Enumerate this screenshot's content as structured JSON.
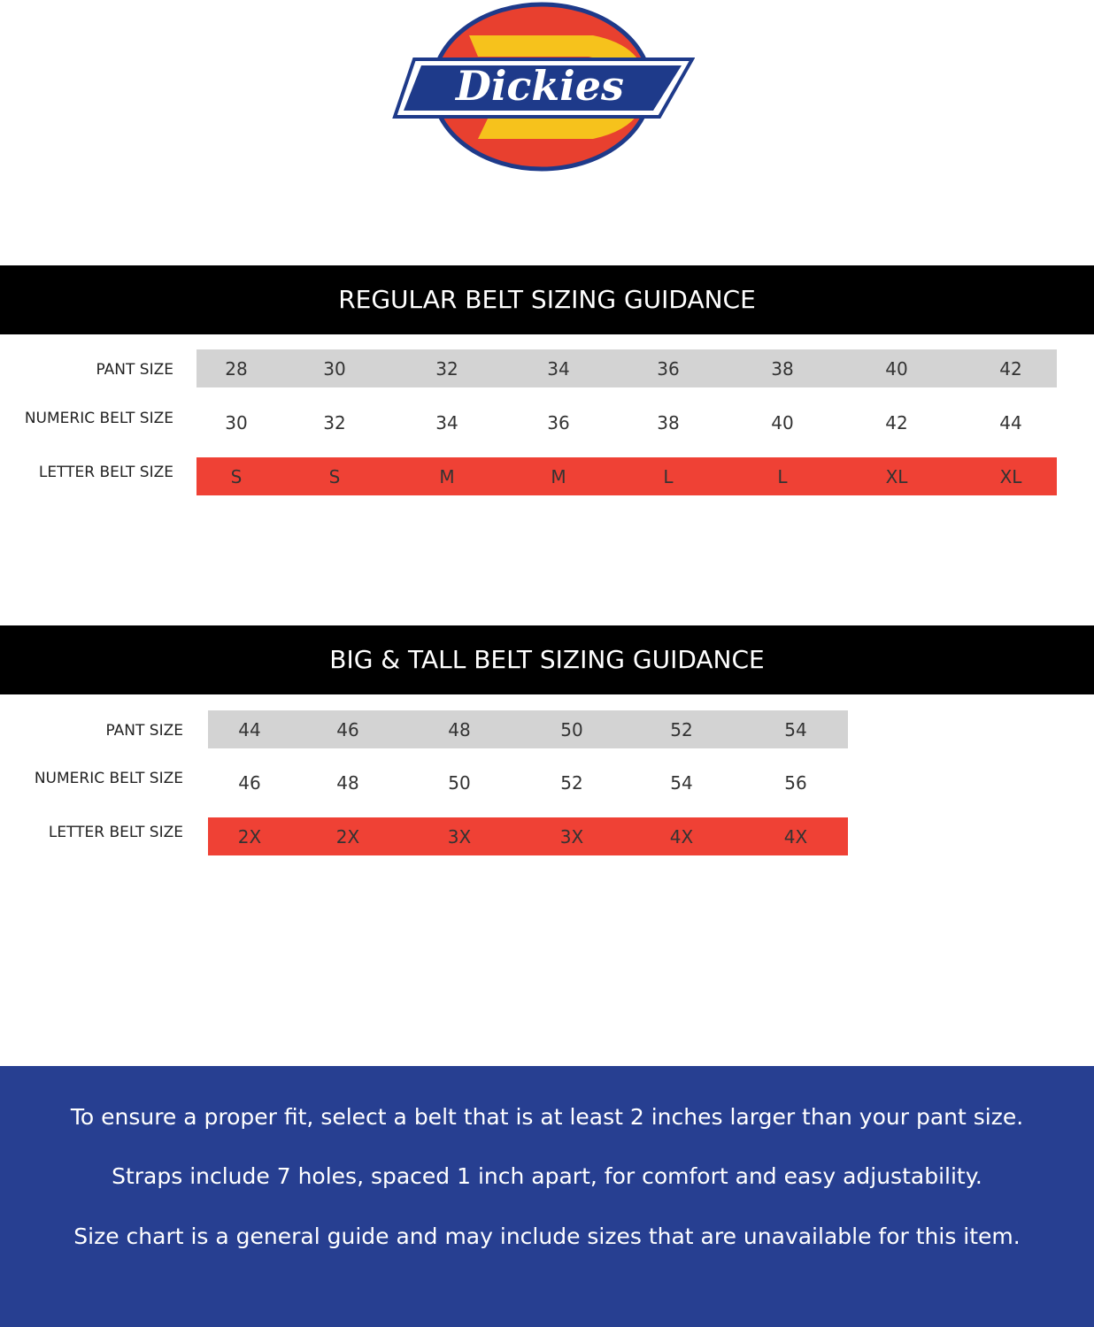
{
  "logo": {
    "text": "Dickies"
  },
  "sections": [
    {
      "title": "REGULAR BELT SIZING GUIDANCE",
      "row_labels": [
        "PANT SIZE",
        "NUMERIC BELT SIZE",
        "LETTER BELT SIZE"
      ],
      "rows": [
        [
          28,
          30,
          32,
          34,
          36,
          38,
          40,
          42
        ],
        [
          30,
          32,
          34,
          36,
          38,
          40,
          42,
          44
        ],
        [
          "S",
          "S",
          "M",
          "M",
          "L",
          "L",
          "XL",
          "XL"
        ]
      ]
    },
    {
      "title": "BIG & TALL BELT SIZING GUIDANCE",
      "row_labels": [
        "PANT SIZE",
        "NUMERIC BELT SIZE",
        "LETTER BELT SIZE"
      ],
      "rows": [
        [
          44,
          46,
          48,
          50,
          52,
          54
        ],
        [
          46,
          48,
          50,
          52,
          54,
          56
        ],
        [
          "2X",
          "2X",
          "3X",
          "3X",
          "4X",
          "4X"
        ]
      ]
    }
  ],
  "notes": [
    "To ensure a proper fit, select a belt that is at least 2 inches larger than your pant size.",
    "Straps include 7 holes, spaced 1 inch apart, for comfort and easy adjustability.",
    "Size chart is a general guide and may include sizes that are unavailable for this item."
  ]
}
